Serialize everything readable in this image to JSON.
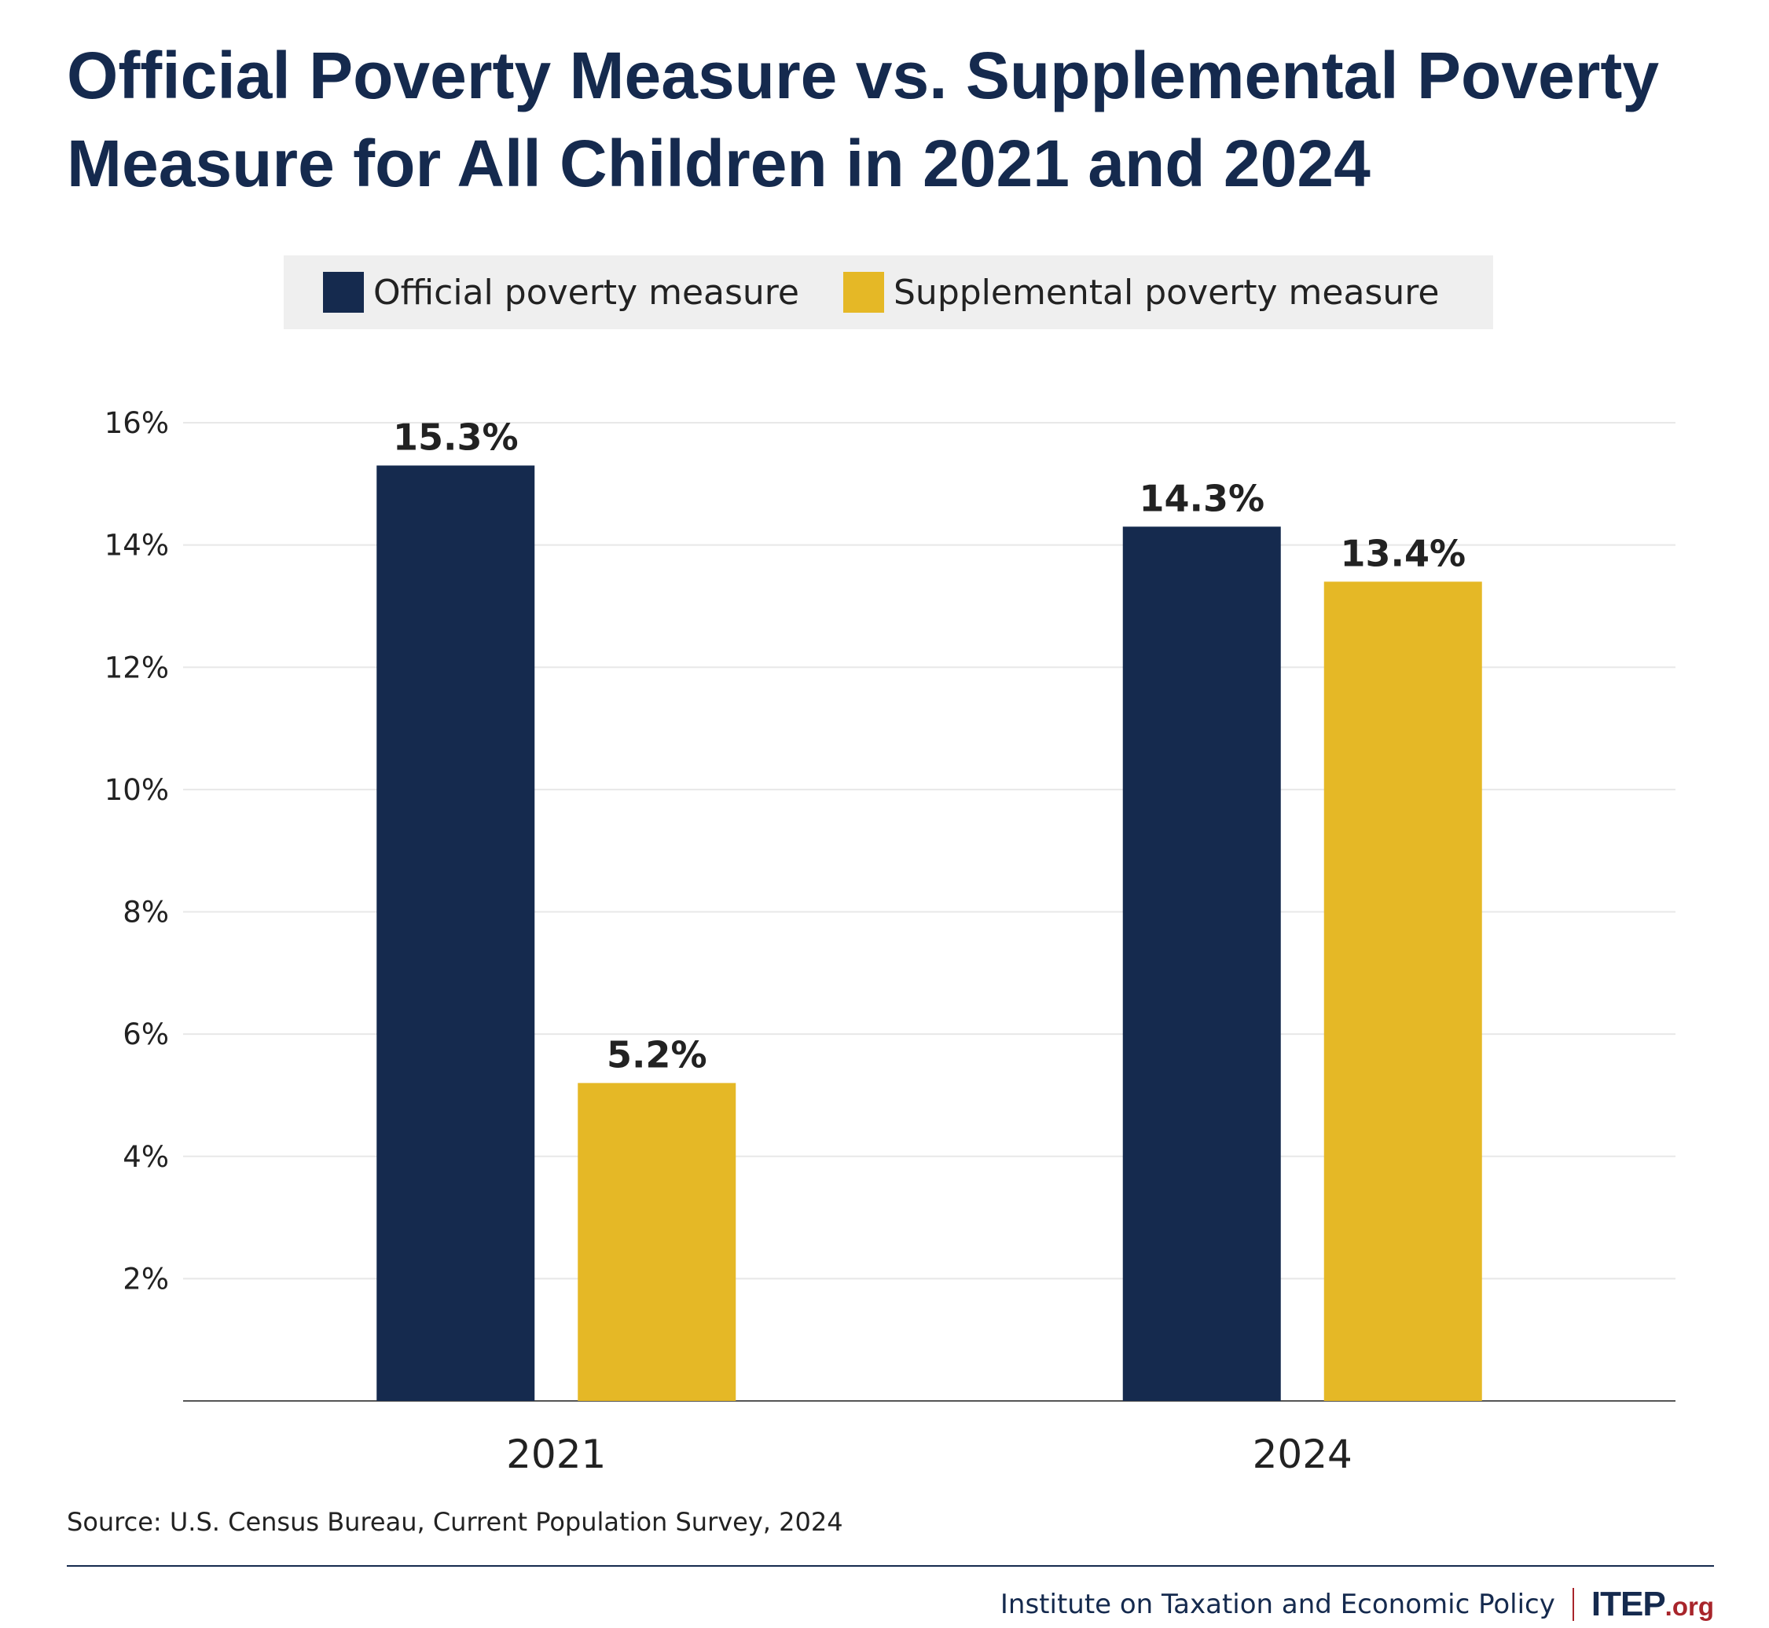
{
  "title": "Official Poverty Measure vs. Supplemental Poverty Measure for All Children in 2021 and 2024",
  "legend": {
    "items": [
      {
        "label": "Official poverty measure",
        "color": "#152a4e"
      },
      {
        "label": "Supplemental poverty measure",
        "color": "#e5b826"
      }
    ]
  },
  "chart_data": {
    "type": "bar",
    "categories": [
      "2021",
      "2024"
    ],
    "series": [
      {
        "name": "Official poverty measure",
        "values": [
          15.3,
          14.3
        ],
        "labels": [
          "15.3%",
          "14.3%"
        ],
        "color": "#152a4e"
      },
      {
        "name": "Supplemental poverty measure",
        "values": [
          5.2,
          13.4
        ],
        "labels": [
          "5.2%",
          "13.4%"
        ],
        "color": "#e5b826"
      }
    ],
    "yticks": [
      2,
      4,
      6,
      8,
      10,
      12,
      14,
      16
    ],
    "ytick_labels": [
      "2%",
      "4%",
      "6%",
      "8%",
      "10%",
      "12%",
      "14%",
      "16%"
    ],
    "ylim": [
      0,
      16
    ],
    "grid": true,
    "legend_position": "top-center"
  },
  "source": "Source: U.S. Census Bureau, Current Population Survey, 2024",
  "footer": {
    "org_name": "Institute on Taxation and Economic Policy",
    "logo_main": "ITEP",
    "logo_tld": ".org"
  }
}
